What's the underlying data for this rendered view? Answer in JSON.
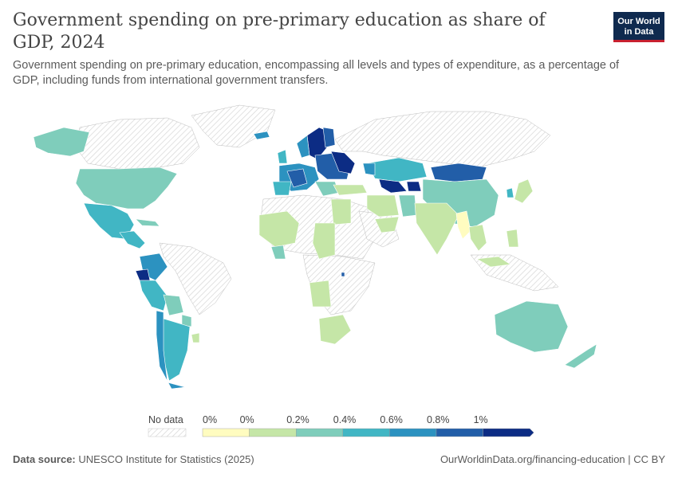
{
  "header": {
    "title": "Government spending on pre-primary education as share of GDP, 2024",
    "subtitle": "Government spending on pre-primary education, encompassing all levels and types of expenditure, as a percentage of GDP, including funds from international government transfers.",
    "logo_line1": "Our World",
    "logo_line2": "in Data"
  },
  "legend": {
    "no_data_label": "No data",
    "bins": [
      {
        "label": "0%",
        "color": "#fffcc0"
      },
      {
        "label": "0%",
        "color": "#c5e6a7"
      },
      {
        "label": "0.2%",
        "color": "#7fcdbb"
      },
      {
        "label": "0.4%",
        "color": "#41b6c4"
      },
      {
        "label": "0.6%",
        "color": "#2c92c0"
      },
      {
        "label": "0.8%",
        "color": "#225ea8"
      },
      {
        "label": "1%",
        "color": "#0c2c84"
      }
    ]
  },
  "footer": {
    "source_label": "Data source:",
    "source_text": "UNESCO Institute for Statistics (2025)",
    "right_text": "OurWorldinData.org/financing-education | CC BY"
  },
  "colors": {
    "no_data_hatch": "#d6d6d6",
    "land_stroke": "#ffffff",
    "logo_bg": "#0f2a4f",
    "logo_accent": "#c8202f"
  }
}
